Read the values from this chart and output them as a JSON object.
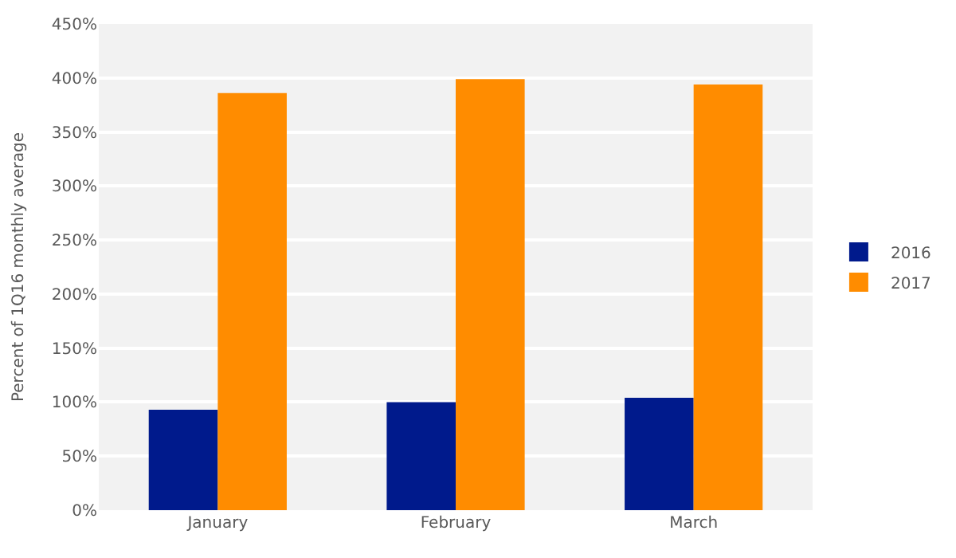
{
  "chart_data": {
    "type": "bar",
    "ylabel": "Percent of 1Q16 monthly average",
    "categories": [
      "January",
      "February",
      "March"
    ],
    "series": [
      {
        "name": "2016",
        "color": "#001a8c",
        "values": [
          93,
          100,
          104
        ]
      },
      {
        "name": "2017",
        "color": "#ff8c00",
        "values": [
          386,
          399,
          394
        ]
      }
    ],
    "ylim": [
      0,
      450
    ],
    "yticks": [
      {
        "value": 0,
        "label": "0%"
      },
      {
        "value": 50,
        "label": "50%"
      },
      {
        "value": 100,
        "label": "100%"
      },
      {
        "value": 150,
        "label": "150%"
      },
      {
        "value": 200,
        "label": "200%"
      },
      {
        "value": 250,
        "label": "250%"
      },
      {
        "value": 300,
        "label": "300%"
      },
      {
        "value": 350,
        "label": "350%"
      },
      {
        "value": 400,
        "label": "400%"
      },
      {
        "value": 450,
        "label": "450%"
      }
    ],
    "grid": "y",
    "legend": "right"
  }
}
